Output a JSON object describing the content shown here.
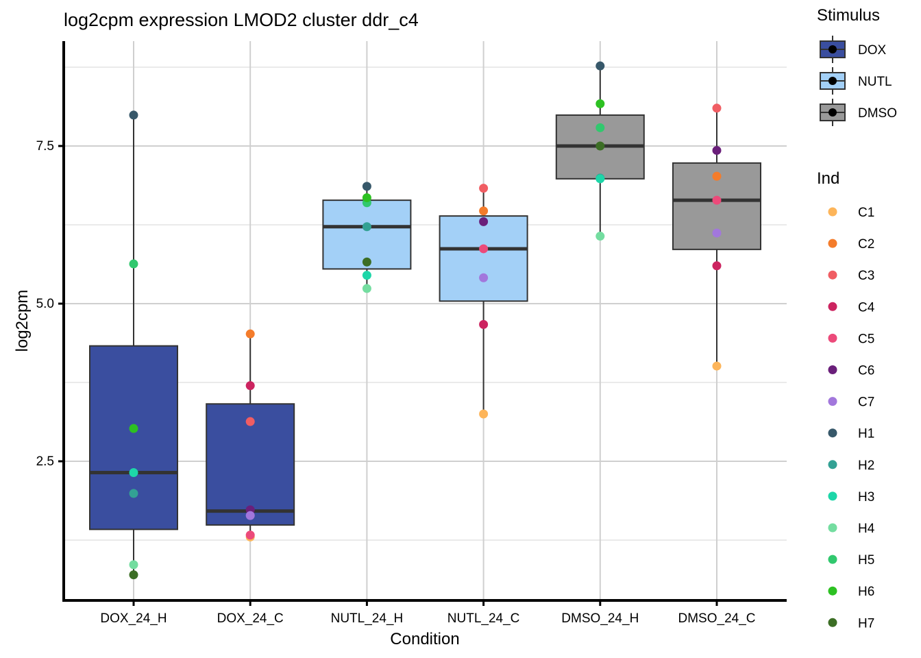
{
  "chart_data": {
    "type": "boxplot",
    "title": "log2cpm expression LMOD2 cluster ddr_c4",
    "xlabel": "Condition",
    "ylabel": "log2cpm",
    "ylim": [
      0.42,
      9.0
    ],
    "yticks": [
      2.5,
      5.0,
      7.5
    ],
    "ytick_labels": [
      "2.5",
      "5.0",
      "7.5"
    ],
    "minor_grid": [
      1.25,
      3.75,
      6.25,
      8.75
    ],
    "grid": true,
    "categories": [
      "DOX_24_H",
      "DOX_24_C",
      "NUTL_24_H",
      "NUTL_24_C",
      "DMSO_24_H",
      "DMSO_24_C"
    ],
    "stimulus_of_category": [
      "DOX",
      "DOX",
      "NUTL",
      "NUTL",
      "DMSO",
      "DMSO"
    ],
    "boxes": [
      {
        "category": "DOX_24_H",
        "q1": 1.42,
        "median": 2.32,
        "q3": 4.33,
        "whisker_low": 0.7,
        "whisker_high": 7.99
      },
      {
        "category": "DOX_24_C",
        "q1": 1.49,
        "median": 1.71,
        "q3": 3.41,
        "whisker_low": 1.28,
        "whisker_high": 4.52
      },
      {
        "category": "NUTL_24_H",
        "q1": 5.55,
        "median": 6.22,
        "q3": 6.64,
        "whisker_low": 5.24,
        "whisker_high": 6.86
      },
      {
        "category": "NUTL_24_C",
        "q1": 5.04,
        "median": 5.87,
        "q3": 6.39,
        "whisker_low": 3.25,
        "whisker_high": 6.83
      },
      {
        "category": "DMSO_24_H",
        "q1": 6.98,
        "median": 7.5,
        "q3": 7.99,
        "whisker_low": 6.07,
        "whisker_high": 8.77
      },
      {
        "category": "DMSO_24_C",
        "q1": 5.86,
        "median": 6.64,
        "q3": 7.23,
        "whisker_low": 4.01,
        "whisker_high": 8.1
      }
    ],
    "points": [
      {
        "category": "DOX_24_H",
        "ind": "H1",
        "value": 7.99
      },
      {
        "category": "DOX_24_H",
        "ind": "H5",
        "value": 5.63
      },
      {
        "category": "DOX_24_H",
        "ind": "H6",
        "value": 3.02
      },
      {
        "category": "DOX_24_H",
        "ind": "H3",
        "value": 2.32
      },
      {
        "category": "DOX_24_H",
        "ind": "H2",
        "value": 1.99
      },
      {
        "category": "DOX_24_H",
        "ind": "H4",
        "value": 0.86
      },
      {
        "category": "DOX_24_H",
        "ind": "H7",
        "value": 0.7
      },
      {
        "category": "DOX_24_C",
        "ind": "C2",
        "value": 4.52
      },
      {
        "category": "DOX_24_C",
        "ind": "C4",
        "value": 3.7
      },
      {
        "category": "DOX_24_C",
        "ind": "C3",
        "value": 3.13
      },
      {
        "category": "DOX_24_C",
        "ind": "C6",
        "value": 1.73
      },
      {
        "category": "DOX_24_C",
        "ind": "C7",
        "value": 1.64
      },
      {
        "category": "DOX_24_C",
        "ind": "C1",
        "value": 1.3
      },
      {
        "category": "DOX_24_C",
        "ind": "C5",
        "value": 1.33
      },
      {
        "category": "NUTL_24_H",
        "ind": "H1",
        "value": 6.86
      },
      {
        "category": "NUTL_24_H",
        "ind": "H5",
        "value": 6.6
      },
      {
        "category": "NUTL_24_H",
        "ind": "H6",
        "value": 6.68
      },
      {
        "category": "NUTL_24_H",
        "ind": "H2",
        "value": 6.22
      },
      {
        "category": "NUTL_24_H",
        "ind": "H7",
        "value": 5.66
      },
      {
        "category": "NUTL_24_H",
        "ind": "H3",
        "value": 5.45
      },
      {
        "category": "NUTL_24_H",
        "ind": "H4",
        "value": 5.24
      },
      {
        "category": "NUTL_24_C",
        "ind": "C3",
        "value": 6.83
      },
      {
        "category": "NUTL_24_C",
        "ind": "C2",
        "value": 6.47
      },
      {
        "category": "NUTL_24_C",
        "ind": "C6",
        "value": 6.3
      },
      {
        "category": "NUTL_24_C",
        "ind": "C5",
        "value": 5.87
      },
      {
        "category": "NUTL_24_C",
        "ind": "C7",
        "value": 5.41
      },
      {
        "category": "NUTL_24_C",
        "ind": "C4",
        "value": 4.67
      },
      {
        "category": "NUTL_24_C",
        "ind": "C1",
        "value": 3.25
      },
      {
        "category": "DMSO_24_H",
        "ind": "H1",
        "value": 8.77
      },
      {
        "category": "DMSO_24_H",
        "ind": "H6",
        "value": 8.17
      },
      {
        "category": "DMSO_24_H",
        "ind": "H5",
        "value": 7.79
      },
      {
        "category": "DMSO_24_H",
        "ind": "H7",
        "value": 7.5
      },
      {
        "category": "DMSO_24_H",
        "ind": "H2",
        "value": 6.99
      },
      {
        "category": "DMSO_24_H",
        "ind": "H3",
        "value": 6.98
      },
      {
        "category": "DMSO_24_H",
        "ind": "H4",
        "value": 6.07
      },
      {
        "category": "DMSO_24_C",
        "ind": "C3",
        "value": 8.1
      },
      {
        "category": "DMSO_24_C",
        "ind": "C6",
        "value": 7.43
      },
      {
        "category": "DMSO_24_C",
        "ind": "C2",
        "value": 7.02
      },
      {
        "category": "DMSO_24_C",
        "ind": "C5",
        "value": 6.64
      },
      {
        "category": "DMSO_24_C",
        "ind": "C7",
        "value": 6.12
      },
      {
        "category": "DMSO_24_C",
        "ind": "C4",
        "value": 5.6
      },
      {
        "category": "DMSO_24_C",
        "ind": "C1",
        "value": 4.01
      }
    ],
    "legend_stimulus": {
      "title": "Stimulus",
      "placement": "right",
      "items": [
        {
          "label": "DOX",
          "color": "#3A4E9F"
        },
        {
          "label": "NUTL",
          "color": "#A3D0F7"
        },
        {
          "label": "DMSO",
          "color": "#999999"
        }
      ]
    },
    "legend_ind": {
      "title": "Ind",
      "placement": "right",
      "items": [
        {
          "label": "C1",
          "color": "#FDB55A"
        },
        {
          "label": "C2",
          "color": "#F47C2B"
        },
        {
          "label": "C3",
          "color": "#F05D63"
        },
        {
          "label": "C4",
          "color": "#CC2460"
        },
        {
          "label": "C5",
          "color": "#EC4A7A"
        },
        {
          "label": "C6",
          "color": "#6A1F7A"
        },
        {
          "label": "C7",
          "color": "#A277DC"
        },
        {
          "label": "H1",
          "color": "#37586A"
        },
        {
          "label": "H2",
          "color": "#33A194"
        },
        {
          "label": "H3",
          "color": "#1DD6A8"
        },
        {
          "label": "H4",
          "color": "#74DDA0"
        },
        {
          "label": "H5",
          "color": "#31C86E"
        },
        {
          "label": "H6",
          "color": "#2DC122"
        },
        {
          "label": "H7",
          "color": "#3C6E25"
        }
      ]
    }
  }
}
